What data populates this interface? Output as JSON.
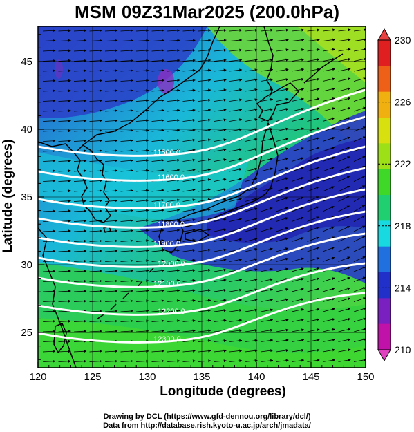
{
  "title": "MSM 09Z31Mar2025 (200.0hPa)",
  "xlabel": "Longitude (degrees)",
  "ylabel": "Latitude  (degrees)",
  "x_ticks": [
    "120",
    "125",
    "130",
    "135",
    "140",
    "145",
    "150"
  ],
  "y_ticks": [
    "25",
    "30",
    "35",
    "40",
    "45"
  ],
  "colorbar": {
    "ticks": [
      "230",
      "226",
      "222",
      "218",
      "214",
      "210"
    ],
    "colors": [
      "#c012a8",
      "#7a20c0",
      "#2030c8",
      "#2070e0",
      "#18d8e0",
      "#20d070",
      "#40d828",
      "#9ee018",
      "#d8e010",
      "#f0b010",
      "#ee6018",
      "#e02020"
    ]
  },
  "contours": [
    {
      "label": "11500.0"
    },
    {
      "label": "11600.0"
    },
    {
      "label": "11700.0"
    },
    {
      "label": "11800.0"
    },
    {
      "label": "11900.0"
    },
    {
      "label": "12000.0"
    },
    {
      "label": "12100.0"
    },
    {
      "label": "12200.0"
    },
    {
      "label": "12300.0"
    }
  ],
  "credits": [
    "Drawing by DCL (https://www.gfd-dennou.org/library/dcl/)",
    "Data from http://database.rish.kyoto-u.ac.jp/arch/jmadata/"
  ],
  "chart_data": {
    "type": "heatmap",
    "title": "MSM 09Z31Mar2025 (200.0hPa)",
    "xlabel": "Longitude (degrees)",
    "ylabel": "Latitude  (degrees)",
    "xlim": [
      120,
      150
    ],
    "ylim": [
      22.4,
      47.6
    ],
    "x_ticks": [
      120,
      125,
      130,
      135,
      140,
      145,
      150
    ],
    "y_ticks": [
      25,
      30,
      35,
      40,
      45
    ],
    "colorbar_range": [
      210,
      230
    ],
    "contour_levels": [
      11500,
      11600,
      11700,
      11800,
      11900,
      12000,
      12100,
      12200,
      12300
    ],
    "fields": [
      "temperature (shaded)",
      "geopotential height (contours)",
      "wind (vectors)"
    ]
  }
}
